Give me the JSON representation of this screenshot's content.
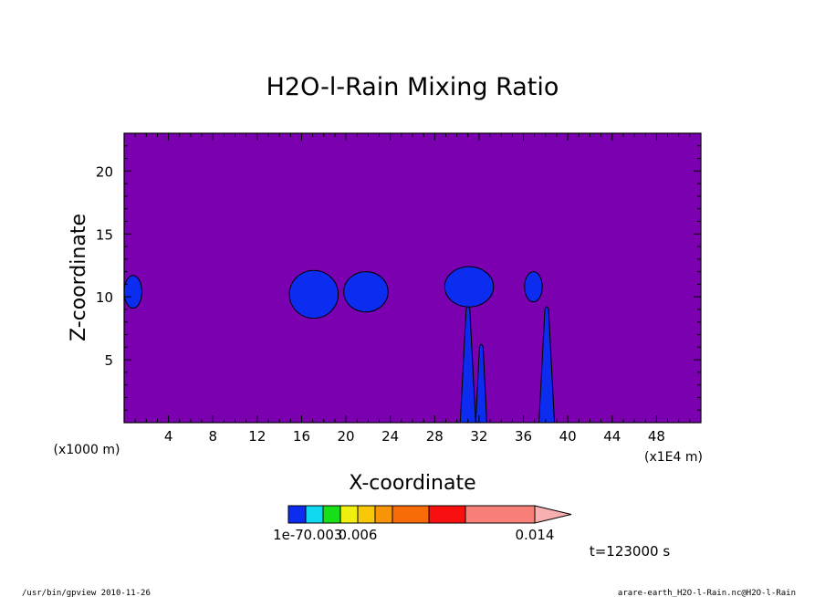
{
  "chart_data": {
    "type": "heatmap",
    "title": "H2O-l-Rain Mixing Ratio",
    "xlabel": "X-coordinate",
    "ylabel": "Z-coordinate",
    "x_unit_left": "(x1000 m)",
    "x_unit_right": "(x1E4 m)",
    "xlim": [
      0,
      52
    ],
    "ylim": [
      0,
      23
    ],
    "x_ticks": [
      4,
      8,
      12,
      16,
      20,
      24,
      28,
      32,
      36,
      40,
      44,
      48
    ],
    "y_ticks": [
      5,
      10,
      15,
      20
    ],
    "background_color": "#7a00b0",
    "colorbar": {
      "colors": [
        "#0c2cf0",
        "#10d8f0",
        "#18e018",
        "#f0f010",
        "#f8c808",
        "#f89408",
        "#f86c08",
        "#f81010",
        "#f88078",
        "#f8b0b0"
      ],
      "labels": [
        {
          "value": "1e-7",
          "index": 0
        },
        {
          "value": "0.003",
          "index": 2
        },
        {
          "value": "0.006",
          "index": 4
        },
        {
          "value": "0.014",
          "index": 9
        }
      ]
    },
    "time_label": "t=123000 s",
    "features": [
      {
        "x": 0.8,
        "z": 10.4,
        "rx": 0.8,
        "rz": 1.3
      },
      {
        "x": 17.1,
        "z": 10.2,
        "rx": 2.2,
        "rz": 1.9
      },
      {
        "x": 21.8,
        "z": 10.4,
        "rx": 2.0,
        "rz": 1.6
      },
      {
        "x": 31.1,
        "z": 10.8,
        "rx": 2.2,
        "rz": 1.6
      },
      {
        "x": 36.9,
        "z": 10.8,
        "rx": 0.8,
        "rz": 1.2
      }
    ],
    "columns": [
      {
        "x": 31.0,
        "z_top": 9.0,
        "half_width": 0.7
      },
      {
        "x": 32.2,
        "z_top": 6.0,
        "half_width": 0.5
      },
      {
        "x": 38.1,
        "z_top": 9.0,
        "half_width": 0.7
      }
    ]
  },
  "footer": {
    "left": "/usr/bin/gpview 2010-11-26",
    "right": "arare-earth_H2O-l-Rain.nc@H2O-l-Rain"
  }
}
